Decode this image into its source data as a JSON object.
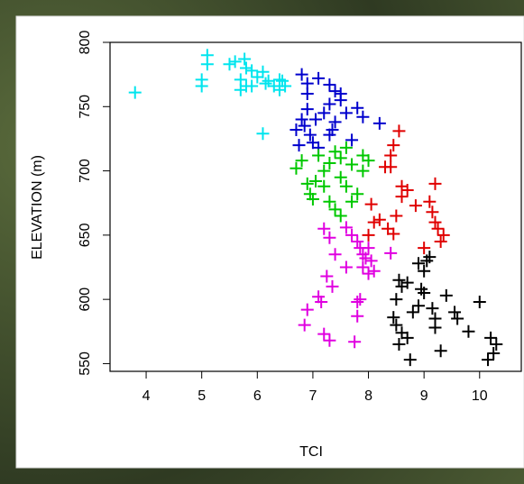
{
  "chart_data": {
    "type": "scatter",
    "x_label": "TCI",
    "y_label": "ELEVATION (m)",
    "xlim": [
      3.35,
      10.75
    ],
    "ylim": [
      544,
      800
    ],
    "xticks": [
      4,
      5,
      6,
      7,
      8,
      9,
      10
    ],
    "yticks": [
      550,
      600,
      650,
      700,
      750,
      800
    ],
    "series": [
      {
        "color": "#00e5ee",
        "x": [
          3.8,
          5.1,
          5.1,
          5.0,
          5.0,
          5.5,
          5.6,
          5.77,
          5.8,
          5.7,
          5.7,
          5.9,
          6.0,
          6.1,
          6.2,
          6.3,
          6.4,
          6.5,
          6.1,
          5.9,
          6.4,
          5.8,
          6.45,
          6.15
        ],
        "values": [
          761,
          790,
          783,
          771,
          766,
          783,
          785,
          787,
          780,
          771,
          763,
          778,
          773,
          777,
          770,
          766,
          771,
          766,
          729,
          766,
          763,
          766,
          770,
          768
        ]
      },
      {
        "color": "#0000cd",
        "x": [
          6.8,
          6.9,
          7.1,
          7.3,
          7.4,
          7.5,
          7.3,
          7.5,
          7.2,
          6.9,
          6.8,
          6.7,
          6.85,
          6.95,
          7.0,
          7.1,
          7.3,
          7.4,
          7.6,
          7.8,
          7.9,
          8.2,
          7.7,
          6.75,
          6.9,
          7.05,
          7.35
        ],
        "values": [
          775,
          768,
          772,
          767,
          762,
          760,
          752,
          755,
          745,
          748,
          740,
          732,
          735,
          728,
          722,
          718,
          728,
          738,
          745,
          749,
          742,
          737,
          724,
          720,
          760,
          740,
          732
        ]
      },
      {
        "color": "#00c800",
        "x": [
          6.7,
          6.8,
          6.9,
          6.95,
          7.0,
          7.05,
          7.1,
          7.2,
          7.3,
          7.4,
          7.5,
          7.6,
          7.7,
          7.9,
          8.0,
          7.3,
          7.4,
          7.5,
          7.6,
          7.7,
          7.8,
          7.9,
          7.2,
          7.5
        ],
        "values": [
          702,
          708,
          690,
          682,
          678,
          692,
          712,
          700,
          706,
          715,
          710,
          718,
          705,
          712,
          708,
          676,
          670,
          665,
          688,
          676,
          682,
          700,
          688,
          695
        ]
      },
      {
        "color": "#e00000",
        "x": [
          8.3,
          8.4,
          8.45,
          8.55,
          8.4,
          8.6,
          8.7,
          8.6,
          8.05,
          8.1,
          8.2,
          8.35,
          8.45,
          8.5,
          8.85,
          9.1,
          9.15,
          9.2,
          9.2,
          9.25,
          9.3,
          9.35,
          9.0,
          8.0
        ],
        "values": [
          703,
          703,
          720,
          731,
          712,
          688,
          685,
          680,
          674,
          660,
          662,
          655,
          651,
          665,
          673,
          676,
          668,
          690,
          660,
          655,
          645,
          650,
          640,
          650
        ]
      },
      {
        "color": "#e000e0",
        "x": [
          7.6,
          7.7,
          7.8,
          7.85,
          7.9,
          8.0,
          8.05,
          8.0,
          7.9,
          8.1,
          7.2,
          7.3,
          7.4,
          7.6,
          7.25,
          7.35,
          7.1,
          7.15,
          6.9,
          6.85,
          7.2,
          7.3,
          7.75,
          7.8,
          7.85,
          7.8,
          8.4,
          7.95
        ],
        "values": [
          656,
          650,
          645,
          640,
          635,
          640,
          630,
          620,
          625,
          622,
          655,
          648,
          635,
          625,
          618,
          610,
          602,
          598,
          592,
          580,
          573,
          568,
          567,
          587,
          600,
          598,
          636,
          632
        ]
      },
      {
        "color": "#000000",
        "x": [
          8.55,
          8.6,
          8.5,
          8.7,
          8.9,
          9.0,
          9.05,
          9.1,
          8.95,
          9.0,
          8.45,
          8.5,
          8.6,
          8.55,
          8.7,
          8.75,
          8.8,
          8.9,
          9.15,
          9.2,
          9.3,
          9.4,
          9.55,
          9.6,
          9.8,
          10.0,
          10.2,
          10.3,
          10.25,
          10.15,
          9.2
        ],
        "values": [
          615,
          610,
          600,
          613,
          628,
          622,
          630,
          633,
          608,
          605,
          586,
          580,
          574,
          565,
          570,
          553,
          590,
          595,
          593,
          585,
          560,
          603,
          590,
          585,
          575,
          598,
          570,
          565,
          558,
          553,
          578
        ]
      }
    ]
  }
}
